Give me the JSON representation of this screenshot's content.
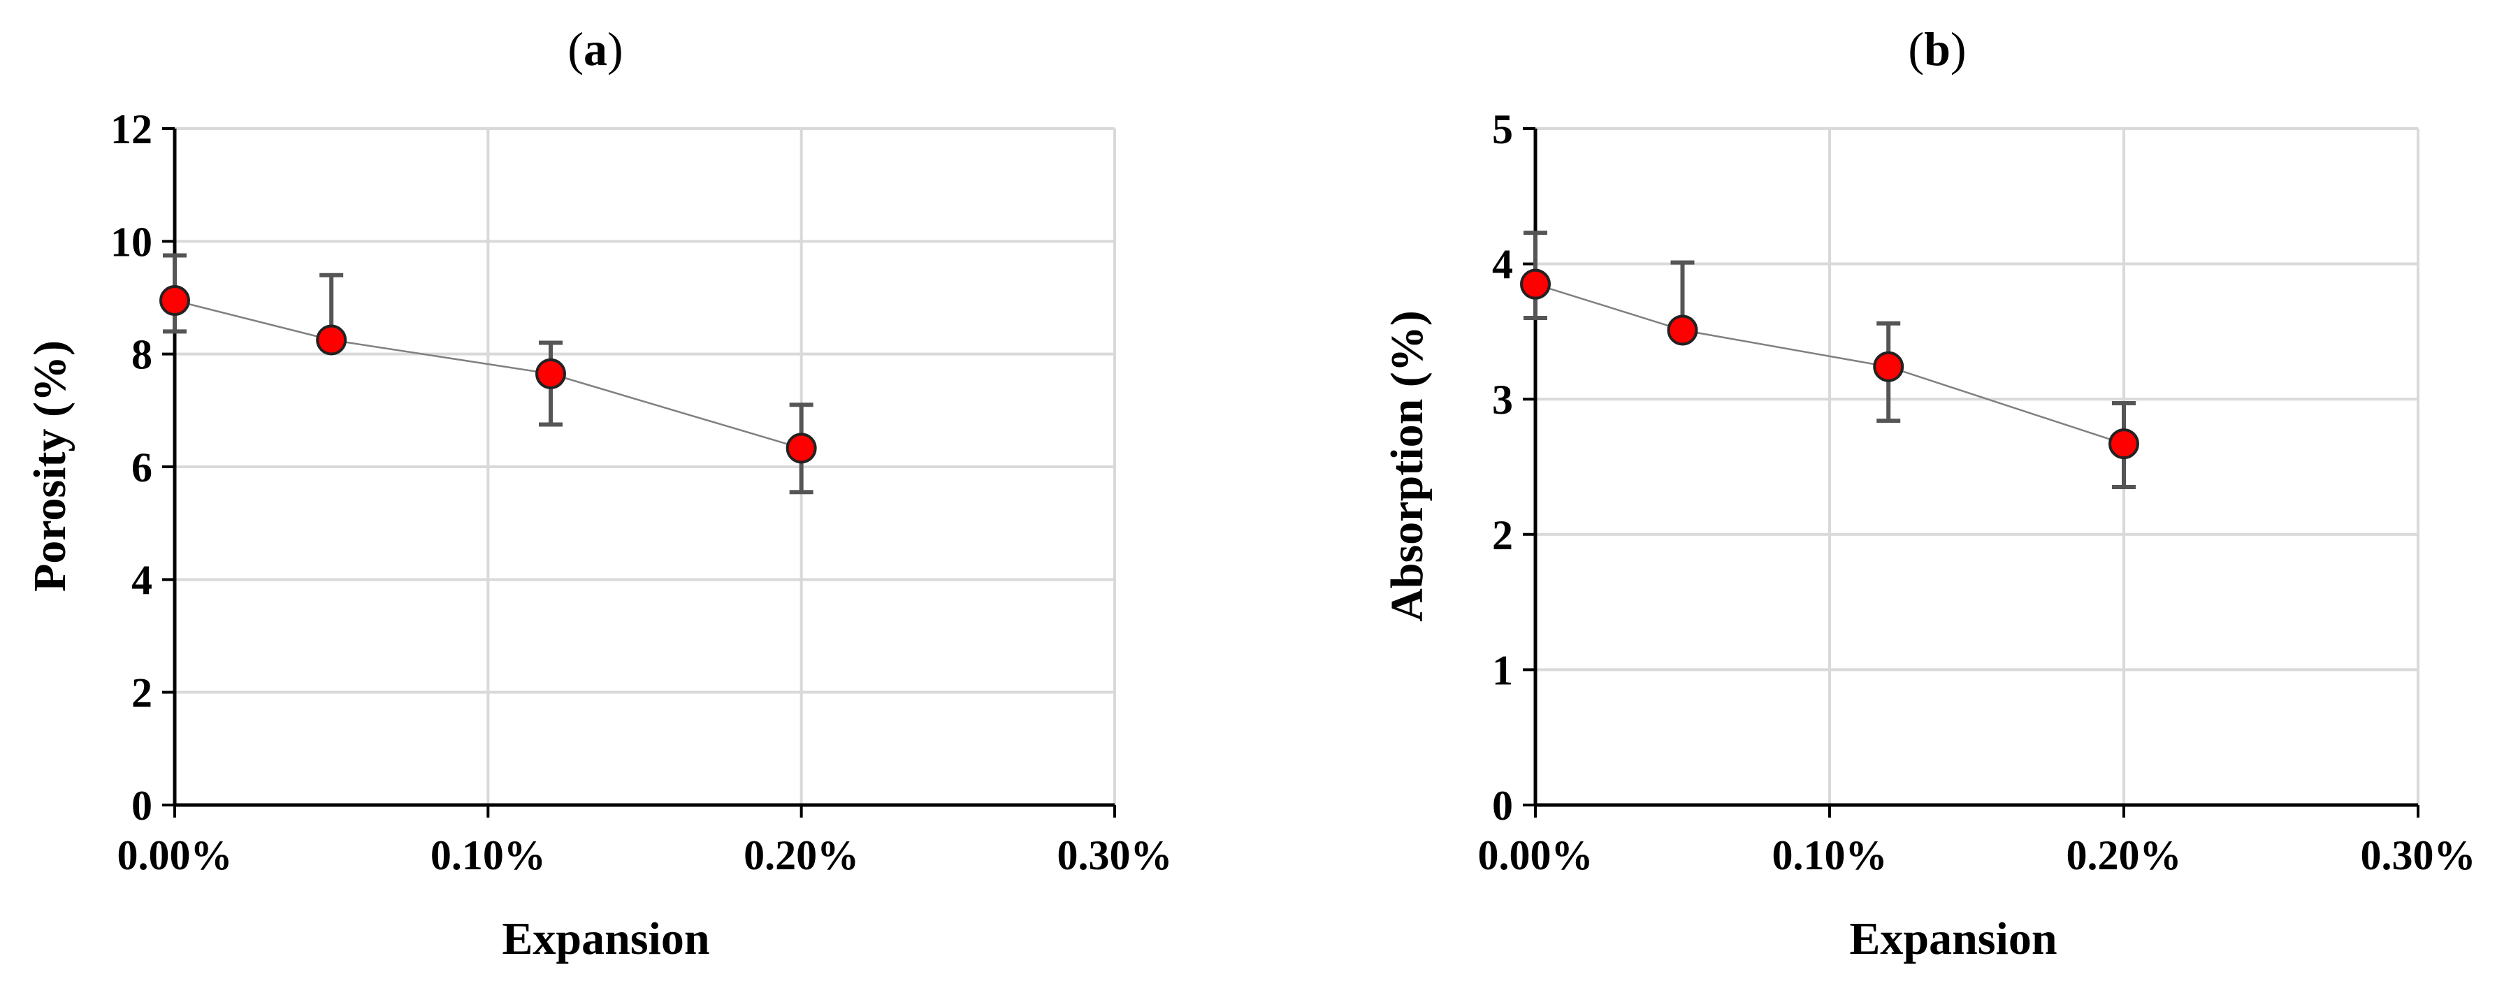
{
  "chart_data": [
    {
      "type": "scatter",
      "title": "(a)",
      "title_paren_open": "(",
      "title_letter": "a",
      "title_paren_close": ")",
      "xlabel": "Expansion",
      "ylabel": "Porosity (%)",
      "xlim": [
        0,
        0.003
      ],
      "ylim": [
        0,
        12
      ],
      "x_ticks": [
        "0.00%",
        "0.10%",
        "0.20%",
        "0.30%"
      ],
      "y_ticks": [
        "0",
        "2",
        "4",
        "6",
        "8",
        "10",
        "12"
      ],
      "grid": true,
      "connecting_line": true,
      "series": [
        {
          "points": [
            {
              "x": 0.0,
              "y": 8.95,
              "err_low": 0.55,
              "err_high": 0.8
            },
            {
              "x": 0.0005,
              "y": 8.25,
              "err_low": 0.05,
              "err_high": 1.15
            },
            {
              "x": 0.0012,
              "y": 7.65,
              "err_low": 0.9,
              "err_high": 0.55
            },
            {
              "x": 0.002,
              "y": 6.33,
              "err_low": 0.78,
              "err_high": 0.77
            }
          ]
        }
      ]
    },
    {
      "type": "scatter",
      "title": "(b)",
      "title_paren_open": "(",
      "title_letter": "b",
      "title_paren_close": ")",
      "xlabel": "Expansion",
      "ylabel": "Absorption (%)",
      "xlim": [
        0,
        0.003
      ],
      "ylim": [
        0,
        5
      ],
      "x_ticks": [
        "0.00%",
        "0.10%",
        "0.20%",
        "0.30%"
      ],
      "y_ticks": [
        "0",
        "1",
        "2",
        "3",
        "4",
        "5"
      ],
      "grid": true,
      "connecting_line": true,
      "series": [
        {
          "points": [
            {
              "x": 0.0,
              "y": 3.85,
              "err_low": 0.25,
              "err_high": 0.38
            },
            {
              "x": 0.0005,
              "y": 3.51,
              "err_low": 0.05,
              "err_high": 0.5
            },
            {
              "x": 0.0012,
              "y": 3.24,
              "err_low": 0.4,
              "err_high": 0.32
            },
            {
              "x": 0.002,
              "y": 2.67,
              "err_low": 0.32,
              "err_high": 0.3
            }
          ]
        }
      ]
    }
  ],
  "colors": {
    "marker_fill": "#ff0000",
    "marker_stroke": "#222222",
    "grid": "#d9d9d9",
    "axis": "#000000",
    "error_bar": "#555555",
    "connector": "#808080"
  }
}
